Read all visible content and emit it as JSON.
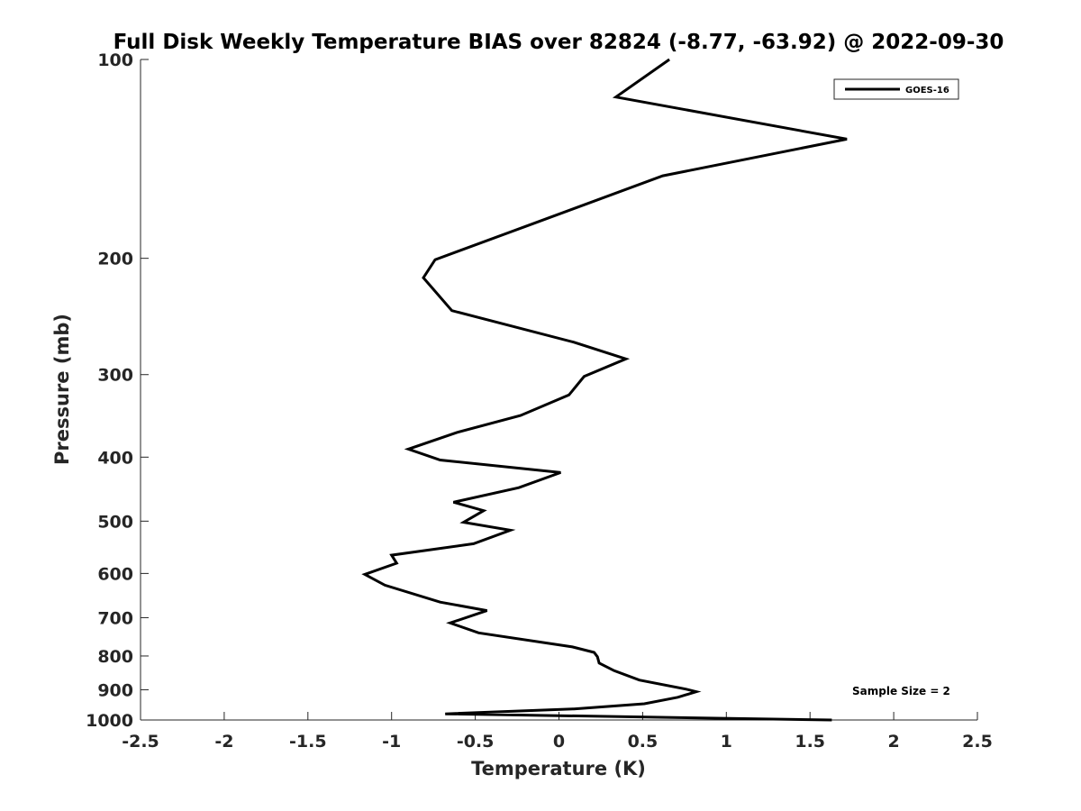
{
  "chart_data": {
    "type": "line",
    "title": "Full Disk Weekly Temperature BIAS over 82824 (-8.77, -63.92) @ 2022-09-30",
    "xlabel": "Temperature (K)",
    "ylabel": "Pressure (mb)",
    "xlim": [
      -2.5,
      2.5
    ],
    "ylim": [
      100,
      1000
    ],
    "y_scale": "log",
    "y_reversed": true,
    "x_ticks": [
      -2.5,
      -2,
      -1.5,
      -1,
      -0.5,
      0,
      0.5,
      1,
      1.5,
      2,
      2.5
    ],
    "x_tick_labels": [
      "-2.5",
      "-2",
      "-1.5",
      "-1",
      "-0.5",
      "0",
      "0.5",
      "1",
      "1.5",
      "2",
      "2.5"
    ],
    "y_ticks": [
      100,
      200,
      300,
      400,
      500,
      600,
      700,
      800,
      900,
      1000
    ],
    "y_tick_labels": [
      "100",
      "200",
      "300",
      "400",
      "500",
      "600",
      "700",
      "800",
      "900",
      "1000"
    ],
    "grid": false,
    "legend_position": "top-right",
    "annotation": "Sample Size = 2",
    "line_color": "#000000",
    "series": [
      {
        "name": "GOES-16",
        "points": [
          [
            0.66,
            100
          ],
          [
            0.34,
            114
          ],
          [
            1.72,
            132
          ],
          [
            0.62,
            150
          ],
          [
            -0.2,
            179
          ],
          [
            -0.74,
            201
          ],
          [
            -0.81,
            214
          ],
          [
            -0.64,
            240
          ],
          [
            0.09,
            268
          ],
          [
            0.4,
            284
          ],
          [
            0.15,
            302
          ],
          [
            0.06,
            322
          ],
          [
            -0.23,
            346
          ],
          [
            -0.61,
            367
          ],
          [
            -0.9,
            389
          ],
          [
            -0.71,
            404
          ],
          [
            0.01,
            422
          ],
          [
            -0.24,
            445
          ],
          [
            -0.63,
            468
          ],
          [
            -0.45,
            482
          ],
          [
            -0.57,
            502
          ],
          [
            -0.29,
            516
          ],
          [
            -0.51,
            541
          ],
          [
            -1.0,
            563
          ],
          [
            -0.97,
            579
          ],
          [
            -1.16,
            602
          ],
          [
            -1.04,
            625
          ],
          [
            -0.71,
            663
          ],
          [
            -0.43,
            683
          ],
          [
            -0.65,
            713
          ],
          [
            -0.48,
            738
          ],
          [
            0.08,
            775
          ],
          [
            0.21,
            790
          ],
          [
            0.23,
            802
          ],
          [
            0.24,
            820
          ],
          [
            0.33,
            842
          ],
          [
            0.48,
            870
          ],
          [
            0.76,
            898
          ],
          [
            0.82,
            906
          ],
          [
            0.71,
            924
          ],
          [
            0.51,
            945
          ],
          [
            0.09,
            962
          ],
          [
            -0.68,
            979
          ],
          [
            1.63,
            1000
          ]
        ]
      }
    ]
  }
}
